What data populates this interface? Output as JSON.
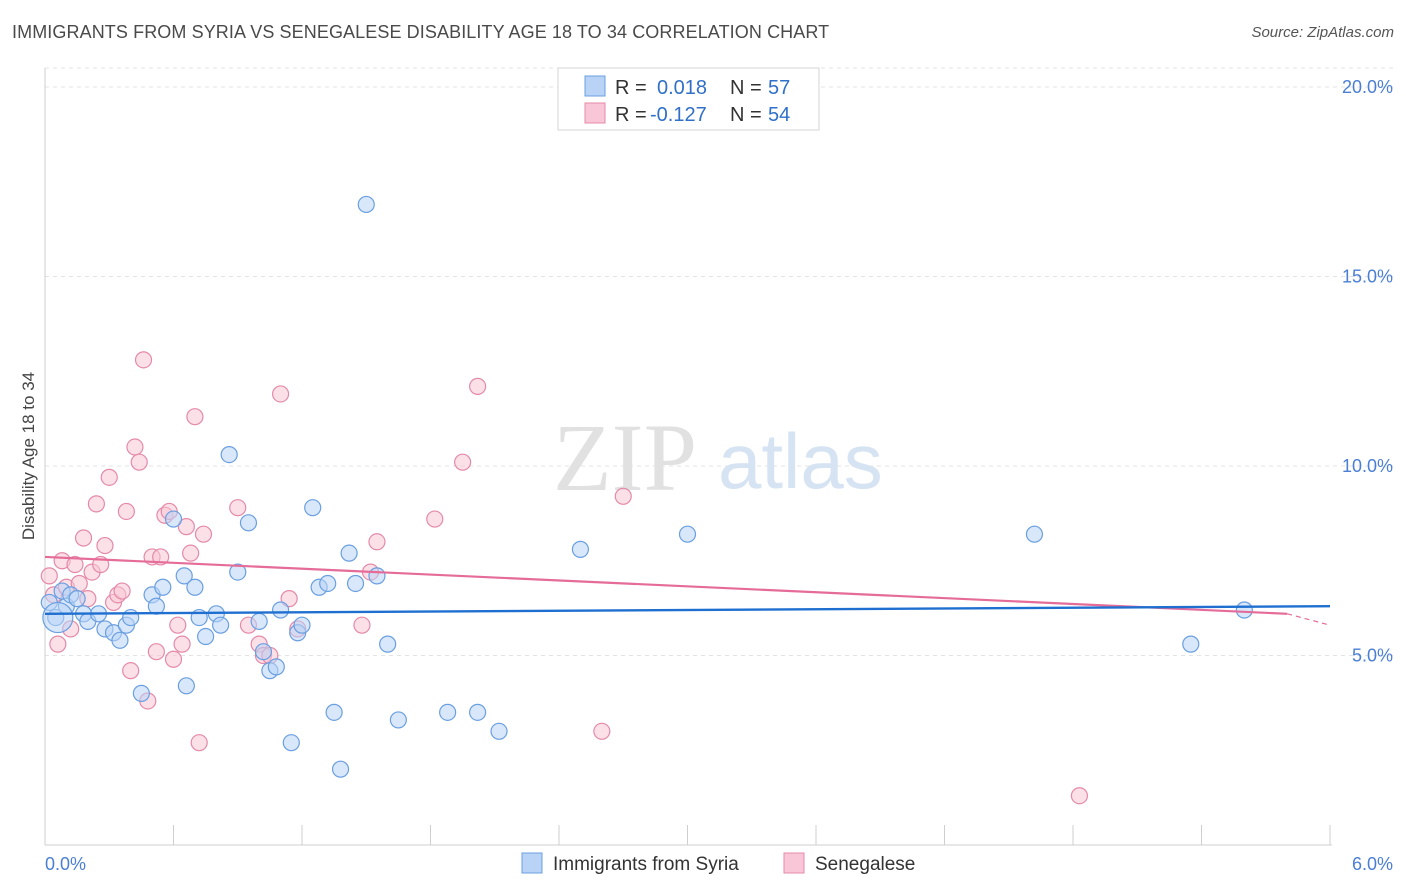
{
  "header": {
    "title": "IMMIGRANTS FROM SYRIA VS SENEGALESE DISABILITY AGE 18 TO 34 CORRELATION CHART",
    "source": "Source: ZipAtlas.com"
  },
  "watermark": {
    "zip": "ZIP",
    "atlas": "atlas"
  },
  "legend": {
    "rows": [
      {
        "r_label": "R =",
        "r_value": "0.018",
        "n_label": "N =",
        "n_value": "57"
      },
      {
        "r_label": "R =",
        "r_value": "-0.127",
        "n_label": "N =",
        "n_value": "54"
      }
    ]
  },
  "colors": {
    "series_a_fill": "#b8d3f5",
    "series_a_stroke": "#6a9fe0",
    "series_a_line": "#1f6fd0",
    "series_b_fill": "#f8c6d6",
    "series_b_stroke": "#e48aa8",
    "series_b_line": "#e56b98",
    "value_text": "#3070c8"
  },
  "chart_data": {
    "type": "scatter",
    "title": "IMMIGRANTS FROM SYRIA VS SENEGALESE DISABILITY AGE 18 TO 34 CORRELATION CHART",
    "xlabel": "",
    "ylabel": "Disability Age 18 to 34",
    "xlim": [
      0,
      6
    ],
    "ylim": [
      0,
      20.5
    ],
    "x_tick_labels": [
      "0.0%",
      "6.0%"
    ],
    "y_ticks": [
      5,
      10,
      15,
      20
    ],
    "y_tick_labels": [
      "5.0%",
      "10.0%",
      "15.0%",
      "20.0%"
    ],
    "grid": true,
    "legend_position": "top-center",
    "series": [
      {
        "name": "Immigrants from Syria",
        "r": 0.018,
        "n": 57,
        "trend": {
          "x": [
            0,
            6
          ],
          "y": [
            6.1,
            6.3
          ]
        },
        "points": [
          [
            0.02,
            6.4
          ],
          [
            0.05,
            6.0
          ],
          [
            0.08,
            6.7
          ],
          [
            0.1,
            6.3
          ],
          [
            0.12,
            6.6
          ],
          [
            0.15,
            6.5
          ],
          [
            0.18,
            6.1
          ],
          [
            0.2,
            5.9
          ],
          [
            0.25,
            6.1
          ],
          [
            0.28,
            5.7
          ],
          [
            0.32,
            5.6
          ],
          [
            0.35,
            5.4
          ],
          [
            0.38,
            5.8
          ],
          [
            0.4,
            6.0
          ],
          [
            0.45,
            4.0
          ],
          [
            0.5,
            6.6
          ],
          [
            0.52,
            6.3
          ],
          [
            0.55,
            6.8
          ],
          [
            0.6,
            8.6
          ],
          [
            0.65,
            7.1
          ],
          [
            0.66,
            4.2
          ],
          [
            0.7,
            6.8
          ],
          [
            0.72,
            6.0
          ],
          [
            0.75,
            5.5
          ],
          [
            0.8,
            6.1
          ],
          [
            0.82,
            5.8
          ],
          [
            0.86,
            10.3
          ],
          [
            0.9,
            7.2
          ],
          [
            0.95,
            8.5
          ],
          [
            1.0,
            5.9
          ],
          [
            1.02,
            5.1
          ],
          [
            1.05,
            4.6
          ],
          [
            1.08,
            4.7
          ],
          [
            1.1,
            6.2
          ],
          [
            1.15,
            2.7
          ],
          [
            1.18,
            5.6
          ],
          [
            1.2,
            5.8
          ],
          [
            1.25,
            8.9
          ],
          [
            1.28,
            6.8
          ],
          [
            1.32,
            6.9
          ],
          [
            1.35,
            3.5
          ],
          [
            1.38,
            2.0
          ],
          [
            1.42,
            7.7
          ],
          [
            1.45,
            6.9
          ],
          [
            1.5,
            16.9
          ],
          [
            1.55,
            7.1
          ],
          [
            1.6,
            5.3
          ],
          [
            1.65,
            3.3
          ],
          [
            1.88,
            3.5
          ],
          [
            2.02,
            3.5
          ],
          [
            2.12,
            3.0
          ],
          [
            2.5,
            7.8
          ],
          [
            3.0,
            8.2
          ],
          [
            4.62,
            8.2
          ],
          [
            5.35,
            5.3
          ],
          [
            5.6,
            6.2
          ],
          [
            0.06,
            6.0
          ]
        ]
      },
      {
        "name": "Senegalese",
        "r": -0.127,
        "n": 54,
        "trend": {
          "x": [
            0,
            5.8
          ],
          "y": [
            7.6,
            6.1
          ]
        },
        "trend_dashed": {
          "x": [
            5.8,
            6.0
          ],
          "y": [
            6.1,
            5.8
          ]
        },
        "points": [
          [
            0.02,
            7.1
          ],
          [
            0.04,
            6.6
          ],
          [
            0.06,
            5.3
          ],
          [
            0.08,
            7.5
          ],
          [
            0.1,
            6.8
          ],
          [
            0.12,
            5.7
          ],
          [
            0.14,
            7.4
          ],
          [
            0.16,
            6.9
          ],
          [
            0.18,
            8.1
          ],
          [
            0.2,
            6.5
          ],
          [
            0.22,
            7.2
          ],
          [
            0.24,
            9.0
          ],
          [
            0.26,
            7.4
          ],
          [
            0.28,
            7.9
          ],
          [
            0.3,
            9.7
          ],
          [
            0.32,
            6.4
          ],
          [
            0.34,
            6.6
          ],
          [
            0.36,
            6.7
          ],
          [
            0.38,
            8.8
          ],
          [
            0.4,
            4.6
          ],
          [
            0.42,
            10.5
          ],
          [
            0.44,
            10.1
          ],
          [
            0.46,
            12.8
          ],
          [
            0.48,
            3.8
          ],
          [
            0.5,
            7.6
          ],
          [
            0.52,
            5.1
          ],
          [
            0.54,
            7.6
          ],
          [
            0.56,
            8.7
          ],
          [
            0.58,
            8.8
          ],
          [
            0.6,
            4.9
          ],
          [
            0.62,
            5.8
          ],
          [
            0.64,
            5.3
          ],
          [
            0.66,
            8.4
          ],
          [
            0.68,
            7.7
          ],
          [
            0.7,
            11.3
          ],
          [
            0.72,
            2.7
          ],
          [
            0.74,
            8.2
          ],
          [
            0.9,
            8.9
          ],
          [
            0.95,
            5.8
          ],
          [
            1.0,
            5.3
          ],
          [
            1.02,
            5.0
          ],
          [
            1.05,
            5.0
          ],
          [
            1.1,
            11.9
          ],
          [
            1.14,
            6.5
          ],
          [
            1.18,
            5.7
          ],
          [
            1.48,
            5.8
          ],
          [
            1.52,
            7.2
          ],
          [
            1.55,
            8.0
          ],
          [
            1.82,
            8.6
          ],
          [
            1.95,
            10.1
          ],
          [
            2.02,
            12.1
          ],
          [
            2.6,
            3.0
          ],
          [
            2.7,
            9.2
          ],
          [
            4.83,
            1.3
          ]
        ]
      }
    ]
  },
  "bottom_legend": {
    "series_a": "Immigrants from Syria",
    "series_b": "Senegalese"
  }
}
